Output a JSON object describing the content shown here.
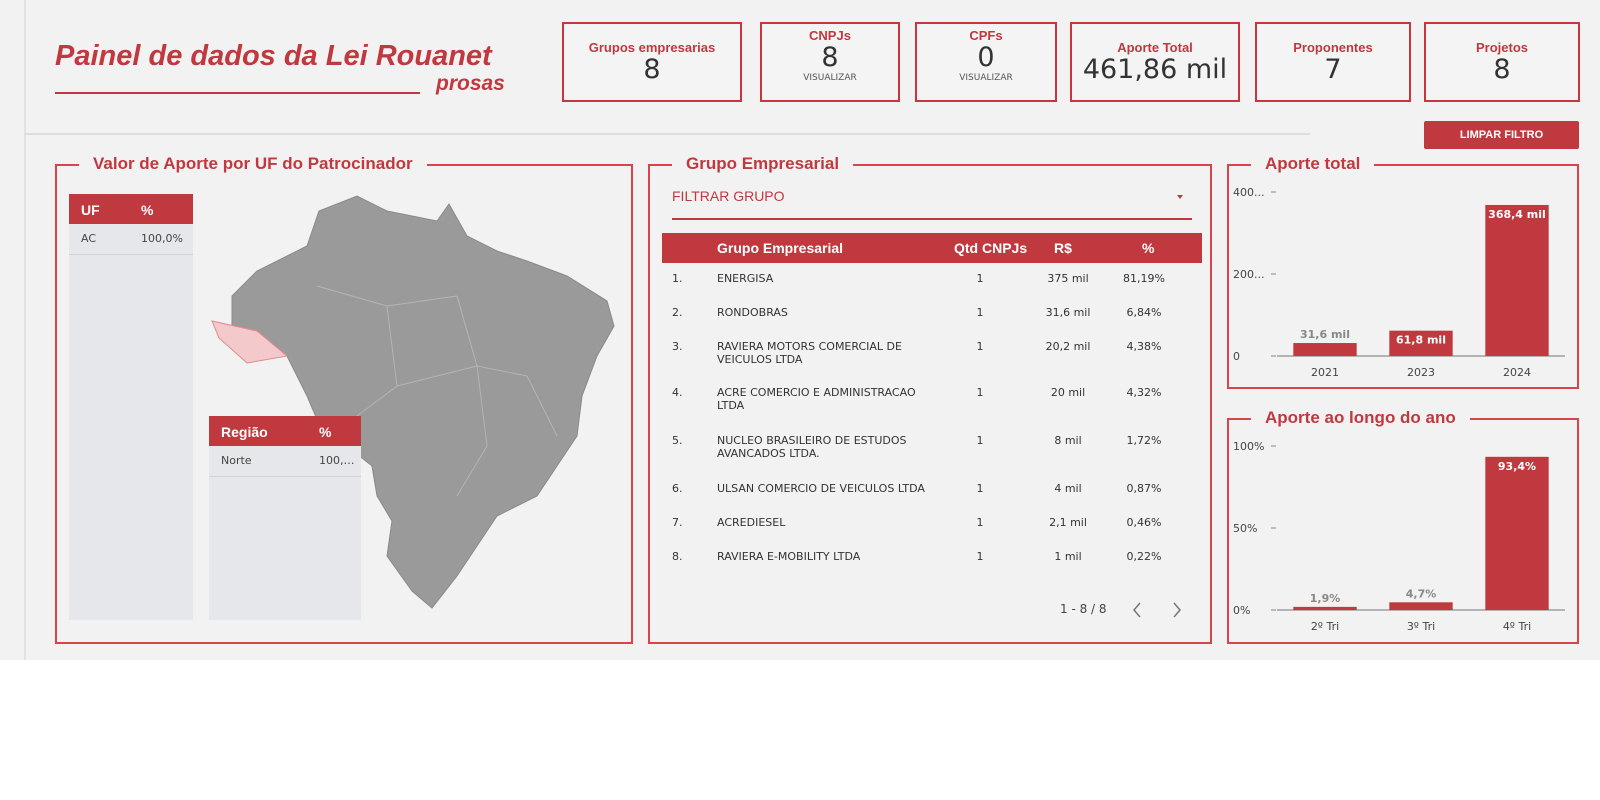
{
  "header": {
    "title": "Painel de dados da Lei Rouanet",
    "subtitle": "prosas"
  },
  "kpis": [
    {
      "label": "Grupos empresarias",
      "value": "8"
    },
    {
      "label": "CNPJs",
      "value": "8",
      "link": "VISUALIZAR"
    },
    {
      "label": "CPFs",
      "value": "0",
      "link": "VISUALIZAR"
    },
    {
      "label": "Aporte Total",
      "value": "461,86 mil"
    },
    {
      "label": "Proponentes",
      "value": "7"
    },
    {
      "label": "Projetos",
      "value": "8"
    }
  ],
  "clear_button": "LIMPAR FILTRO",
  "map_panel": {
    "title": "Valor de Aporte por UF do Patrocinador",
    "uf_table": {
      "headers": [
        "UF",
        "%"
      ],
      "rows": [
        [
          "AC",
          "100,0%"
        ]
      ]
    },
    "region_table": {
      "headers": [
        "Região",
        "%"
      ],
      "rows": [
        [
          "Norte",
          "100,…"
        ]
      ]
    }
  },
  "group_panel": {
    "title": "Grupo Empresarial",
    "filter": "FILTRAR GRUPO",
    "table": {
      "headers": [
        "Grupo Empresarial",
        "Qtd CNPJs",
        "R$",
        "%"
      ],
      "rows": [
        [
          "1.",
          "ENERGISA",
          "1",
          "375 mil",
          "81,19%"
        ],
        [
          "2.",
          "RONDOBRAS",
          "1",
          "31,6 mil",
          "6,84%"
        ],
        [
          "3.",
          "RAVIERA MOTORS COMERCIAL DE VEICULOS LTDA",
          "1",
          "20,2 mil",
          "4,38%"
        ],
        [
          "4.",
          "ACRE COMERCIO E ADMINISTRACAO LTDA",
          "1",
          "20 mil",
          "4,32%"
        ],
        [
          "5.",
          "NUCLEO BRASILEIRO DE ESTUDOS AVANCADOS LTDA.",
          "1",
          "8 mil",
          "1,72%"
        ],
        [
          "6.",
          "ULSAN COMERCIO DE VEICULOS LTDA",
          "1",
          "4 mil",
          "0,87%"
        ],
        [
          "7.",
          "ACREDIESEL",
          "1",
          "2,1 mil",
          "0,46%"
        ],
        [
          "8.",
          "RAVIERA E-MOBILITY LTDA",
          "1",
          "1 mil",
          "0,22%"
        ]
      ]
    },
    "pagination": "1 - 8 / 8"
  },
  "chart_data": [
    {
      "type": "bar",
      "title": "Aporte total",
      "color": "#c0393f",
      "categories": [
        "2021",
        "2023",
        "2024"
      ],
      "values": [
        31.6,
        61.8,
        368.4
      ],
      "value_labels": [
        "31,6 mil",
        "61,8 mil",
        "368,4 mil"
      ],
      "ylim": [
        0,
        400
      ],
      "yticks": [
        0,
        {
          "value": 200,
          "label": "200..."
        },
        {
          "value": 400,
          "label": "400..."
        }
      ]
    },
    {
      "type": "bar",
      "title": "Aporte ao longo do ano",
      "color": "#c0393f",
      "categories": [
        "2º Tri",
        "3º Tri",
        "4º Tri"
      ],
      "values": [
        1.9,
        4.7,
        93.4
      ],
      "value_labels": [
        "1,9%",
        "4,7%",
        "93,4%"
      ],
      "ylim": [
        0,
        100
      ],
      "yticks": [
        {
          "value": 0,
          "label": "0%"
        },
        {
          "value": 50,
          "label": "50%"
        },
        {
          "value": 100,
          "label": "100%"
        }
      ]
    }
  ]
}
